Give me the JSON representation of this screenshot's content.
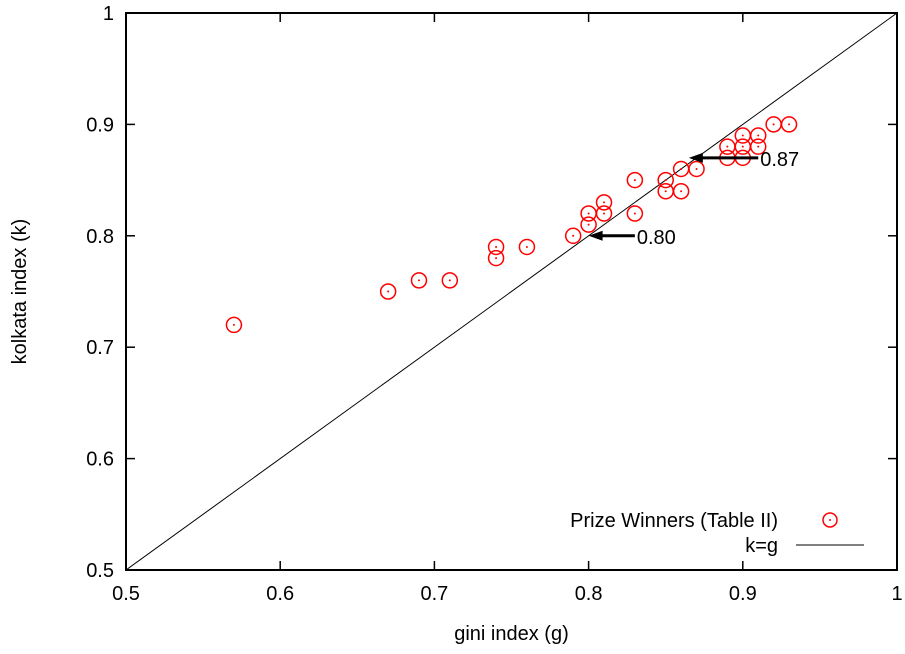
{
  "chart_data": {
    "type": "scatter",
    "title": "",
    "xlabel": "gini index (g)",
    "ylabel": "kolkata index (k)",
    "xlim": [
      0.5,
      1
    ],
    "ylim": [
      0.5,
      1
    ],
    "x_ticks": [
      0.5,
      0.6,
      0.7,
      0.8,
      0.9,
      1
    ],
    "y_ticks": [
      0.5,
      0.6,
      0.7,
      0.8,
      0.9,
      1
    ],
    "x_tick_labels": [
      "0.5",
      "0.6",
      "0.7",
      "0.8",
      "0.9",
      "1"
    ],
    "y_tick_labels": [
      "0.5",
      "0.6",
      "0.7",
      "0.8",
      "0.9",
      "1"
    ],
    "grid": false,
    "legend_position": "bottom-right",
    "series": [
      {
        "name": "Prize Winners (Table II)",
        "marker": "circle-dot",
        "color": "#ff0000",
        "points": [
          [
            0.57,
            0.72
          ],
          [
            0.67,
            0.75
          ],
          [
            0.69,
            0.76
          ],
          [
            0.71,
            0.76
          ],
          [
            0.74,
            0.78
          ],
          [
            0.74,
            0.79
          ],
          [
            0.76,
            0.79
          ],
          [
            0.79,
            0.8
          ],
          [
            0.8,
            0.81
          ],
          [
            0.8,
            0.82
          ],
          [
            0.81,
            0.82
          ],
          [
            0.81,
            0.83
          ],
          [
            0.83,
            0.82
          ],
          [
            0.83,
            0.85
          ],
          [
            0.85,
            0.84
          ],
          [
            0.85,
            0.85
          ],
          [
            0.86,
            0.84
          ],
          [
            0.86,
            0.86
          ],
          [
            0.87,
            0.86
          ],
          [
            0.89,
            0.87
          ],
          [
            0.89,
            0.88
          ],
          [
            0.9,
            0.87
          ],
          [
            0.9,
            0.88
          ],
          [
            0.9,
            0.89
          ],
          [
            0.91,
            0.88
          ],
          [
            0.91,
            0.89
          ],
          [
            0.92,
            0.9
          ],
          [
            0.93,
            0.9
          ]
        ]
      },
      {
        "name": "k=g",
        "type": "line",
        "color": "#000000",
        "points": [
          [
            0.5,
            0.5
          ],
          [
            1,
            1
          ]
        ]
      }
    ],
    "annotations": [
      {
        "text": "0.80",
        "text_x": 0.83,
        "text_y": 0.8,
        "arrow_to": [
          0.8,
          0.8
        ]
      },
      {
        "text": "0.87",
        "text_x": 0.91,
        "text_y": 0.87,
        "arrow_to": [
          0.865,
          0.87
        ]
      }
    ]
  }
}
